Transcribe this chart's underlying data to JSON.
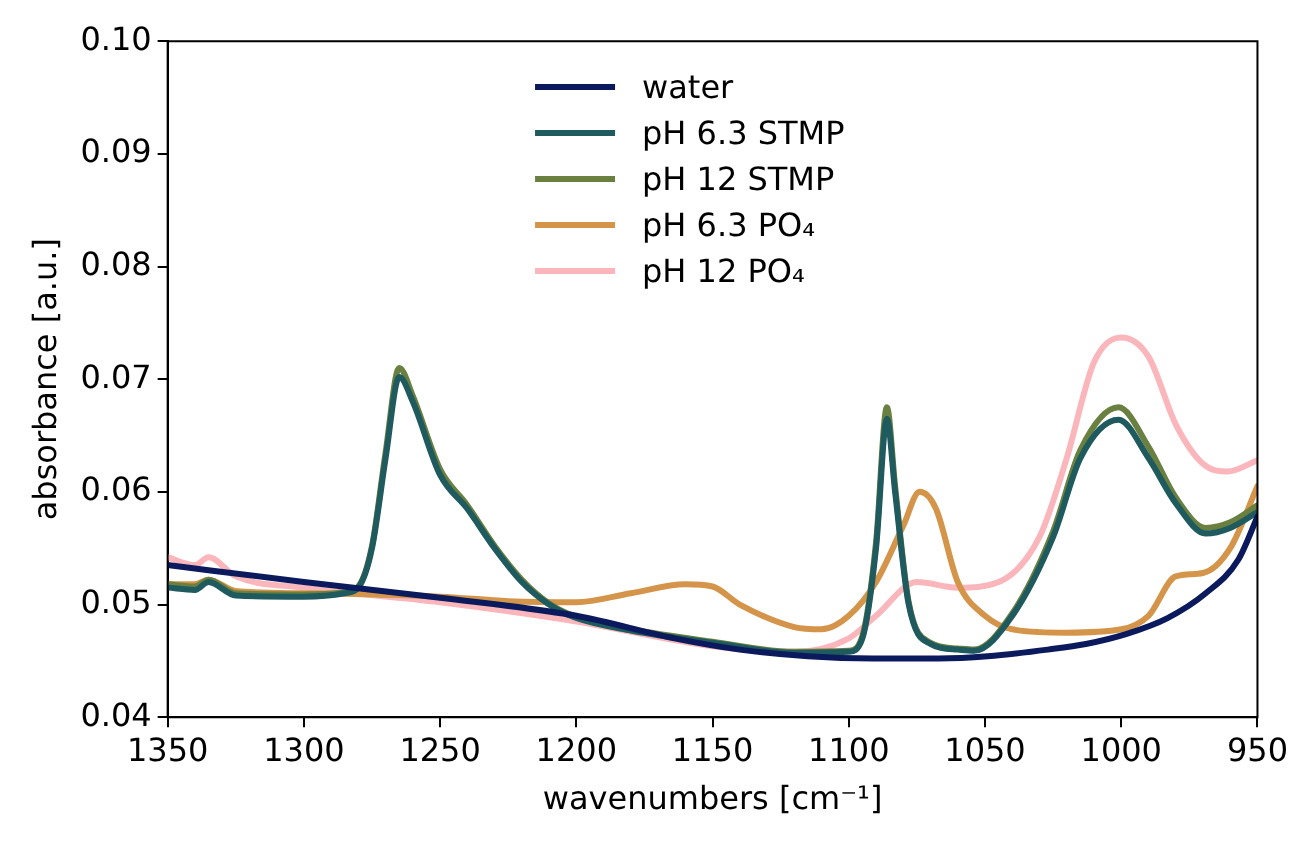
{
  "chart_data": {
    "type": "line",
    "xlabel": "wavenumbers [cm⁻¹]",
    "ylabel": "absorbance [a.u.]",
    "xlim": [
      1350,
      950
    ],
    "xticks": [
      1350,
      1300,
      1250,
      1200,
      1150,
      1100,
      1050,
      1000,
      950
    ],
    "ylim": [
      0.04,
      0.1
    ],
    "yticks": [
      {
        "value": 0.04,
        "label": "0.04"
      },
      {
        "value": 0.05,
        "label": "0.05"
      },
      {
        "value": 0.06,
        "label": "0.06"
      },
      {
        "value": 0.07,
        "label": "0.07"
      },
      {
        "value": 0.08,
        "label": "0.08"
      },
      {
        "value": 0.09,
        "label": "0.09"
      },
      {
        "value": 0.1,
        "label": "0.10"
      }
    ],
    "grid": false,
    "legend": "top",
    "marker": "none",
    "line_style": "solid",
    "series": [
      {
        "name": "water",
        "color": "#0b1a5c",
        "x": [
          1350,
          1300,
          1250,
          1200,
          1164,
          1140,
          1115,
          1091,
          1067,
          1049,
          1027,
          1013,
          998,
          983,
          969,
          957,
          950
        ],
        "values": [
          0.0535,
          0.052,
          0.0506,
          0.049,
          0.047,
          0.046,
          0.0454,
          0.0452,
          0.0452,
          0.0454,
          0.046,
          0.0465,
          0.0474,
          0.0488,
          0.051,
          0.054,
          0.0578
        ]
      },
      {
        "name": "pH 6.3 STMP",
        "color": "#1f5a5e",
        "x": [
          1350,
          1340,
          1335,
          1325,
          1300,
          1285,
          1280,
          1275,
          1270,
          1265,
          1260,
          1250,
          1240,
          1230,
          1220,
          1210,
          1200,
          1180,
          1150,
          1120,
          1100,
          1095,
          1090,
          1086,
          1083,
          1078,
          1070,
          1060,
          1054,
          1040,
          1025,
          1015,
          1001,
          990,
          980,
          969,
          960,
          950
        ],
        "values": [
          0.0515,
          0.0513,
          0.052,
          0.0508,
          0.0507,
          0.051,
          0.0515,
          0.055,
          0.063,
          0.0702,
          0.068,
          0.0615,
          0.0585,
          0.055,
          0.052,
          0.05,
          0.0488,
          0.0477,
          0.0466,
          0.0457,
          0.0458,
          0.047,
          0.055,
          0.0665,
          0.06,
          0.05,
          0.0465,
          0.046,
          0.0459,
          0.049,
          0.056,
          0.063,
          0.0664,
          0.063,
          0.059,
          0.0563,
          0.0568,
          0.0582
        ]
      },
      {
        "name": "pH 12 STMP",
        "color": "#6a8040",
        "x": [
          1350,
          1340,
          1335,
          1325,
          1300,
          1285,
          1280,
          1275,
          1270,
          1265,
          1260,
          1250,
          1240,
          1230,
          1220,
          1210,
          1200,
          1180,
          1150,
          1120,
          1100,
          1095,
          1090,
          1086,
          1083,
          1078,
          1070,
          1060,
          1054,
          1040,
          1025,
          1015,
          1001,
          990,
          980,
          969,
          960,
          950
        ],
        "values": [
          0.0518,
          0.0516,
          0.0522,
          0.051,
          0.0509,
          0.0511,
          0.0516,
          0.0552,
          0.0635,
          0.071,
          0.0685,
          0.062,
          0.0588,
          0.0552,
          0.0522,
          0.0501,
          0.0489,
          0.0478,
          0.0467,
          0.0458,
          0.0459,
          0.0472,
          0.0555,
          0.0675,
          0.0605,
          0.0502,
          0.0466,
          0.0461,
          0.046,
          0.0492,
          0.0565,
          0.0637,
          0.0675,
          0.064,
          0.0595,
          0.0568,
          0.0573,
          0.0588
        ]
      },
      {
        "name": "pH 6.3 PO₄",
        "color": "#d4954a",
        "x": [
          1350,
          1340,
          1335,
          1325,
          1300,
          1250,
          1225,
          1200,
          1180,
          1160,
          1150,
          1140,
          1120,
          1110,
          1100,
          1090,
          1080,
          1074,
          1068,
          1060,
          1050,
          1040,
          1020,
          1000,
          990,
          980,
          970,
          960,
          950
        ],
        "values": [
          0.0518,
          0.0518,
          0.0522,
          0.0512,
          0.051,
          0.0507,
          0.0503,
          0.0502,
          0.051,
          0.0518,
          0.0516,
          0.05,
          0.048,
          0.0478,
          0.049,
          0.052,
          0.057,
          0.06,
          0.0585,
          0.052,
          0.049,
          0.0478,
          0.0475,
          0.0478,
          0.049,
          0.0525,
          0.0528,
          0.055,
          0.0605
        ]
      },
      {
        "name": "pH 12 PO₄",
        "color": "#fbb6bc",
        "x": [
          1350,
          1340,
          1335,
          1325,
          1300,
          1250,
          1200,
          1150,
          1120,
          1100,
          1090,
          1075,
          1060,
          1045,
          1030,
          1020,
          1010,
          1000,
          990,
          980,
          970,
          961,
          950
        ],
        "values": [
          0.0542,
          0.0535,
          0.0542,
          0.0525,
          0.0515,
          0.0502,
          0.0485,
          0.0463,
          0.0458,
          0.047,
          0.049,
          0.052,
          0.0515,
          0.052,
          0.056,
          0.063,
          0.0715,
          0.0737,
          0.072,
          0.066,
          0.0625,
          0.0618,
          0.0628
        ]
      }
    ]
  }
}
